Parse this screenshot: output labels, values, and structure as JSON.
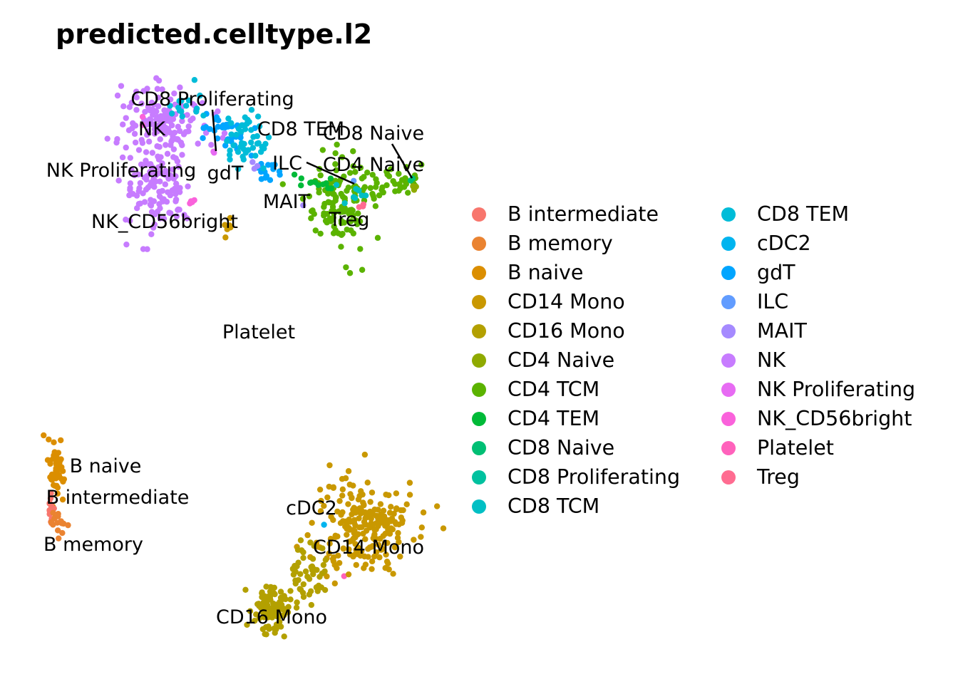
{
  "chart_data": {
    "type": "scatter",
    "title": "predicted.celltype.l2",
    "xlabel": "",
    "ylabel": "",
    "xlim": [
      0,
      11
    ],
    "ylim": [
      0,
      10
    ],
    "axes_visible": false,
    "grid": false,
    "legend_position": "right",
    "categories": [
      "B intermediate",
      "B memory",
      "B naive",
      "CD14 Mono",
      "CD16 Mono",
      "CD4 Naive",
      "CD4 TCM",
      "CD4 TEM",
      "CD8 Naive",
      "CD8 Proliferating",
      "CD8 TCM",
      "CD8 TEM",
      "cDC2",
      "gdT",
      "ILC",
      "MAIT",
      "NK",
      "NK Proliferating",
      "NK_CD56bright",
      "Platelet",
      "Treg"
    ],
    "colors": {
      "B intermediate": "#F8766D",
      "B memory": "#EA8331",
      "B naive": "#DB8E00",
      "CD14 Mono": "#C99800",
      "CD16 Mono": "#B3A000",
      "CD4 Naive": "#8FAA00",
      "CD4 TCM": "#5BB300",
      "CD4 TEM": "#00BA38",
      "CD8 Naive": "#00BF74",
      "CD8 Proliferating": "#00C19F",
      "CD8 TCM": "#00BFC4",
      "CD8 TEM": "#00BCD8",
      "cDC2": "#00B4EF",
      "gdT": "#00A5FF",
      "ILC": "#619CFF",
      "MAIT": "#A58AFF",
      "NK": "#C77CFF",
      "NK Proliferating": "#E76BF3",
      "NK_CD56bright": "#FA62DB",
      "Platelet": "#FF62BC",
      "Treg": "#FF6C91"
    },
    "clusters": [
      {
        "label": "NK",
        "center": [
          3.6,
          9.35
        ],
        "spread": [
          0.6,
          0.35
        ],
        "n": 150
      },
      {
        "label": "NK",
        "center": [
          3.4,
          8.1
        ],
        "spread": [
          0.45,
          0.35
        ],
        "n": 110
      },
      {
        "label": "gdT",
        "center": [
          5.2,
          9.16
        ],
        "spread": [
          0.35,
          0.15
        ],
        "n": 35
      },
      {
        "label": "gdT",
        "center": [
          6.4,
          8.44
        ],
        "spread": [
          0.3,
          0.12
        ],
        "n": 15
      },
      {
        "label": "CD8 TEM",
        "center": [
          5.9,
          8.96
        ],
        "spread": [
          0.3,
          0.25
        ],
        "n": 45
      },
      {
        "label": "CD8 TEM",
        "center": [
          4.3,
          9.6
        ],
        "spread": [
          0.3,
          0.2
        ],
        "n": 15
      },
      {
        "label": "CD4 TCM",
        "center": [
          8.5,
          7.92
        ],
        "spread": [
          0.45,
          0.4
        ],
        "n": 130
      },
      {
        "label": "CD4 TCM",
        "center": [
          9.9,
          8.25
        ],
        "spread": [
          0.5,
          0.12
        ],
        "n": 40
      },
      {
        "label": "CD4 TEM",
        "center": [
          7.9,
          8.25
        ],
        "spread": [
          0.3,
          0.1
        ],
        "n": 12
      },
      {
        "label": "CD8 TCM",
        "center": [
          8.6,
          8.05
        ],
        "spread": [
          0.3,
          0.2
        ],
        "n": 8
      },
      {
        "label": "Treg",
        "center": [
          9.2,
          7.86
        ],
        "spread": [
          0.05,
          0.05
        ],
        "n": 3
      },
      {
        "label": "CD4 Naive",
        "center": [
          10.6,
          8.2
        ],
        "spread": [
          0.05,
          0.05
        ],
        "n": 3
      },
      {
        "label": "CD8 Naive",
        "center": [
          10.56,
          8.31
        ],
        "spread": [
          0.03,
          0.03
        ],
        "n": 2
      },
      {
        "label": "ILC",
        "center": [
          8.94,
          8.25
        ],
        "spread": [
          0.01,
          0.01
        ],
        "n": 1
      },
      {
        "label": "MAIT",
        "center": [
          7.5,
          7.82
        ],
        "spread": [
          0.01,
          0.01
        ],
        "n": 1
      },
      {
        "label": "MAIT",
        "center": [
          6.2,
          8.5
        ],
        "spread": [
          0.1,
          0.05
        ],
        "n": 3
      },
      {
        "label": "NK Proliferating",
        "center": [
          5.0,
          8.8
        ],
        "spread": [
          0.02,
          0.02
        ],
        "n": 2
      },
      {
        "label": "NK_CD56bright",
        "center": [
          4.36,
          7.86
        ],
        "spread": [
          0.05,
          0.05
        ],
        "n": 5
      },
      {
        "label": "NK_CD56bright",
        "center": [
          3.1,
          9.38
        ],
        "spread": [
          0.05,
          0.05
        ],
        "n": 2
      },
      {
        "label": "CD14 Mono",
        "center": [
          5.36,
          7.43
        ],
        "spread": [
          0.05,
          0.15
        ],
        "n": 6
      },
      {
        "label": "Platelet",
        "center": [
          8.66,
          1.04
        ],
        "spread": [
          0.01,
          0.01
        ],
        "n": 1
      },
      {
        "label": "cDC2",
        "center": [
          8.1,
          2.01
        ],
        "spread": [
          0.01,
          0.01
        ],
        "n": 1
      },
      {
        "label": "CD14 Mono",
        "center": [
          9.2,
          1.95
        ],
        "spread": [
          0.7,
          0.45
        ],
        "n": 220
      },
      {
        "label": "CD16 Mono",
        "center": [
          6.6,
          0.45
        ],
        "spread": [
          0.25,
          0.25
        ],
        "n": 90
      },
      {
        "label": "CD16 Mono",
        "center": [
          7.6,
          1.1
        ],
        "spread": [
          0.3,
          0.3
        ],
        "n": 50
      },
      {
        "label": "B naive",
        "center": [
          0.56,
          3.05
        ],
        "spread": [
          0.12,
          0.25
        ],
        "n": 45
      },
      {
        "label": "B intermediate",
        "center": [
          0.44,
          2.27
        ],
        "spread": [
          0.08,
          0.15
        ],
        "n": 15
      },
      {
        "label": "B memory",
        "center": [
          0.7,
          2.01
        ],
        "spread": [
          0.12,
          0.1
        ],
        "n": 15
      }
    ],
    "annotations": [
      "CD8 Proliferating",
      "NK",
      "CD8 TEM",
      "CD8 Naive",
      "ILC",
      "CD4 Naive",
      "NK Proliferating",
      "gdT",
      "MAIT",
      "Treg",
      "NK_CD56bright",
      "Platelet",
      "B naive",
      "B intermediate",
      "B memory",
      "cDC2",
      "CD14 Mono",
      "CD16 Mono"
    ]
  }
}
